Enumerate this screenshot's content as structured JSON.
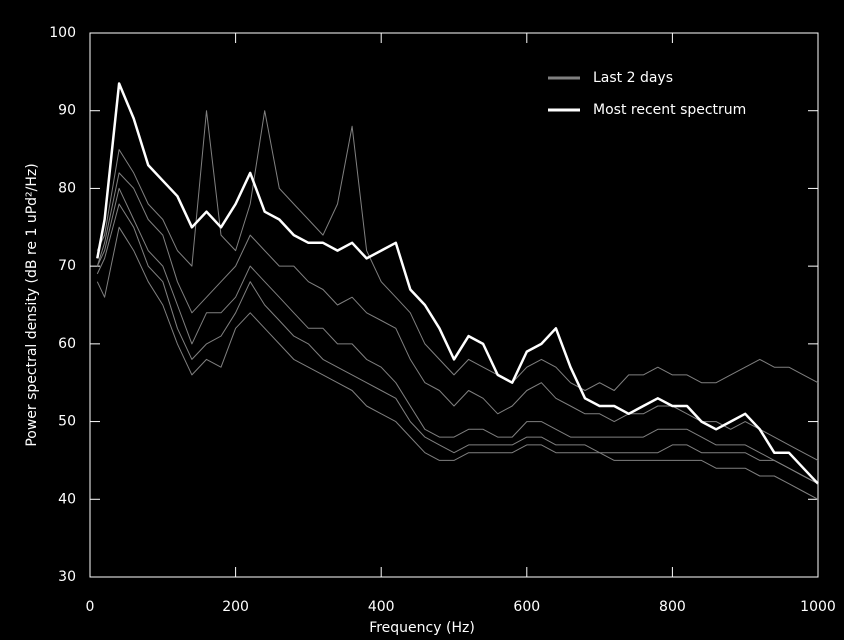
{
  "chart_data": {
    "type": "line",
    "xlabel": "Frequency (Hz)",
    "ylabel": "Power spectral density (dB re 1 uPd²/Hz)",
    "x": [
      10,
      20,
      40,
      60,
      80,
      100,
      120,
      140,
      160,
      180,
      200,
      220,
      240,
      260,
      280,
      300,
      320,
      340,
      360,
      380,
      400,
      420,
      440,
      460,
      480,
      500,
      520,
      540,
      560,
      580,
      600,
      620,
      640,
      660,
      680,
      700,
      720,
      740,
      760,
      780,
      800,
      820,
      840,
      860,
      880,
      900,
      920,
      940,
      960,
      980,
      1000
    ],
    "series": [
      {
        "name": "Last 2 days",
        "color": "#808080",
        "lines": [
          [
            70,
            72,
            80,
            76,
            72,
            70,
            65,
            60,
            64,
            64,
            66,
            70,
            68,
            66,
            64,
            62,
            62,
            60,
            60,
            58,
            57,
            55,
            52,
            49,
            48,
            48,
            49,
            49,
            48,
            48,
            50,
            50,
            49,
            48,
            48,
            48,
            48,
            48,
            48,
            49,
            49,
            49,
            48,
            47,
            47,
            47,
            46,
            45,
            44,
            43,
            42
          ],
          [
            68,
            66,
            75,
            72,
            68,
            65,
            60,
            56,
            58,
            57,
            62,
            64,
            62,
            60,
            58,
            57,
            56,
            55,
            54,
            52,
            51,
            50,
            48,
            46,
            45,
            45,
            46,
            46,
            46,
            46,
            47,
            47,
            46,
            46,
            46,
            46,
            45,
            45,
            45,
            45,
            45,
            45,
            45,
            44,
            44,
            44,
            43,
            43,
            42,
            41,
            40
          ],
          [
            72,
            74,
            85,
            82,
            78,
            76,
            72,
            70,
            90,
            74,
            72,
            78,
            90,
            80,
            78,
            76,
            74,
            78,
            88,
            72,
            68,
            66,
            64,
            60,
            58,
            56,
            58,
            57,
            56,
            55,
            57,
            58,
            57,
            55,
            54,
            55,
            54,
            56,
            56,
            57,
            56,
            56,
            55,
            55,
            56,
            57,
            58,
            57,
            57,
            56,
            55
          ],
          [
            70,
            73,
            82,
            80,
            76,
            74,
            68,
            64,
            66,
            68,
            70,
            74,
            72,
            70,
            70,
            68,
            67,
            65,
            66,
            64,
            63,
            62,
            58,
            55,
            54,
            52,
            54,
            53,
            51,
            52,
            54,
            55,
            53,
            52,
            51,
            51,
            50,
            51,
            51,
            52,
            52,
            51,
            50,
            50,
            49,
            50,
            49,
            48,
            47,
            46,
            45
          ],
          [
            69,
            71,
            78,
            75,
            70,
            68,
            62,
            58,
            60,
            61,
            64,
            68,
            65,
            63,
            61,
            60,
            58,
            57,
            56,
            55,
            54,
            53,
            50,
            48,
            47,
            46,
            47,
            47,
            47,
            47,
            48,
            48,
            47,
            47,
            47,
            46,
            46,
            46,
            46,
            46,
            47,
            47,
            46,
            46,
            46,
            46,
            45,
            45,
            44,
            43,
            42
          ]
        ]
      },
      {
        "name": "Most recent spectrum",
        "color": "#ffffff",
        "values": [
          71,
          76,
          93.5,
          89,
          83,
          81,
          79,
          75,
          77,
          75,
          78,
          82,
          77,
          76,
          74,
          73,
          73,
          72,
          73,
          71,
          72,
          73,
          67,
          65,
          62,
          58,
          61,
          60,
          56,
          55,
          59,
          60,
          62,
          57,
          53,
          52,
          52,
          51,
          52,
          53,
          52,
          52,
          50,
          49,
          50,
          51,
          49,
          46,
          46,
          44,
          42
        ]
      }
    ],
    "xlim": [
      0,
      1000
    ],
    "xticks": [
      0,
      200,
      400,
      600,
      800,
      1000
    ],
    "ylim": [
      30,
      100
    ],
    "yticks": [
      30,
      40,
      50,
      60,
      70,
      80,
      90,
      100
    ]
  }
}
